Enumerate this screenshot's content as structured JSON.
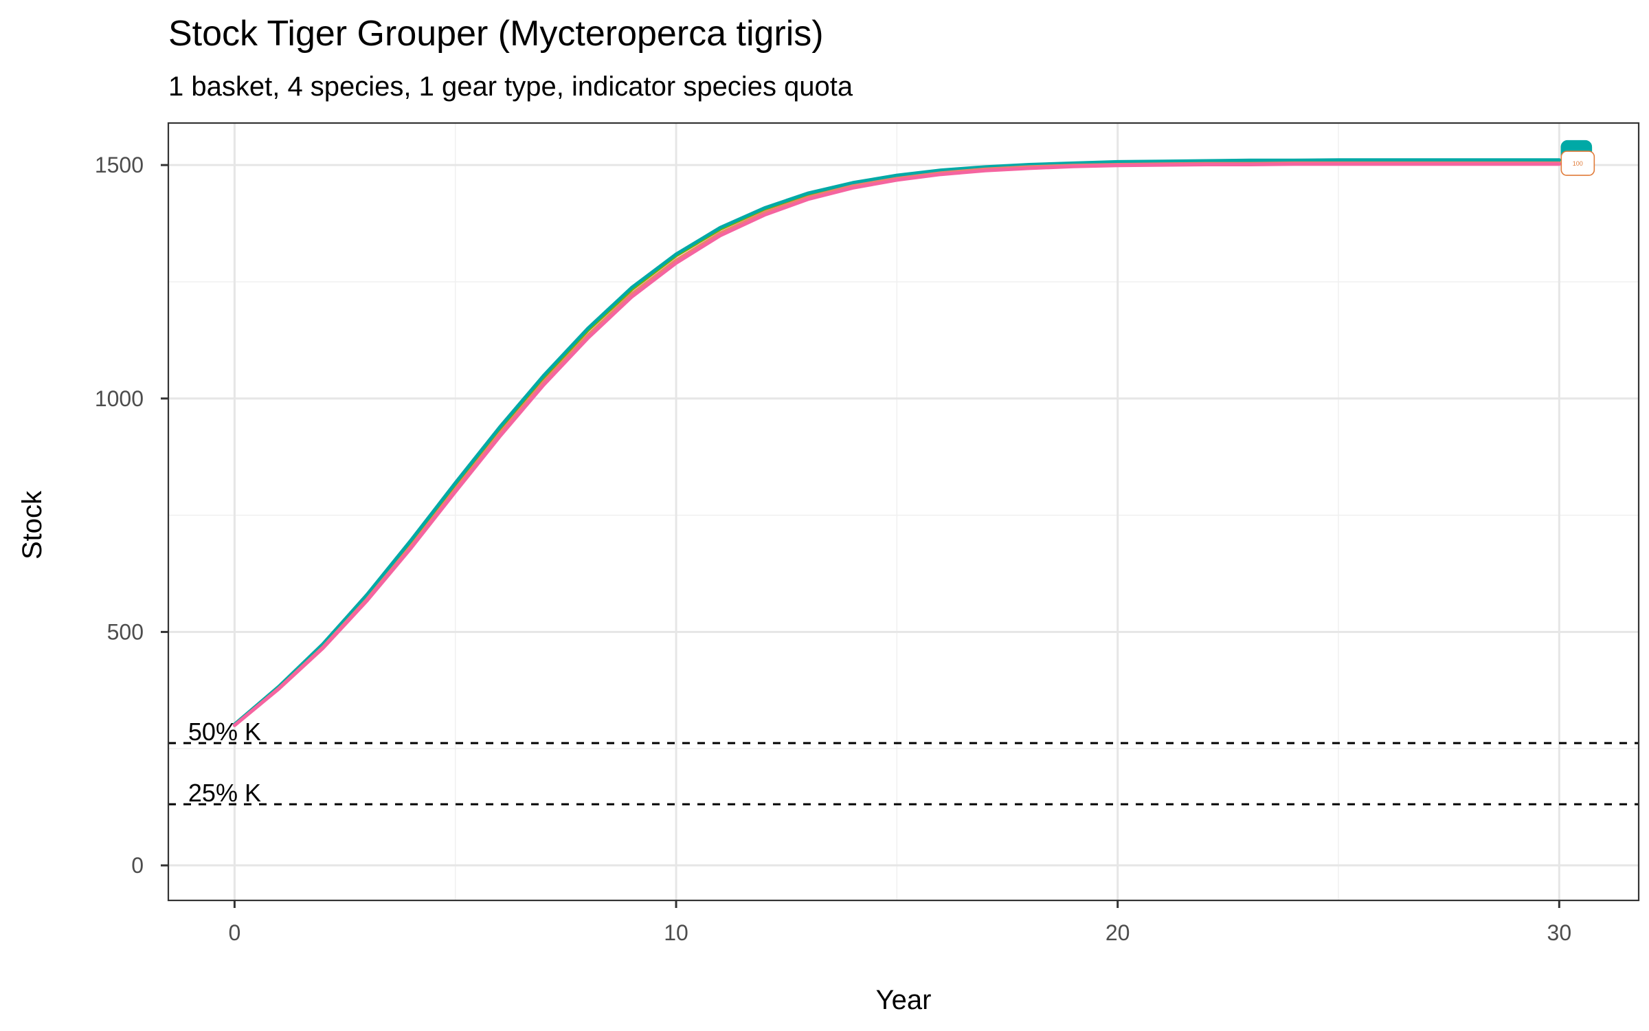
{
  "chart_data": {
    "type": "line",
    "title": "Stock Tiger Grouper (Mycteroperca tigris)",
    "subtitle": "1 basket, 4 species, 1 gear type, indicator species quota",
    "xlabel": "Year",
    "ylabel": "Stock",
    "xlim": [
      -1.5,
      31.8
    ],
    "ylim": [
      -75,
      1590
    ],
    "x_ticks": [
      0,
      10,
      20,
      30
    ],
    "x_minor": [
      5,
      15,
      25
    ],
    "y_ticks": [
      0,
      500,
      1000,
      1500
    ],
    "y_minor": [
      250,
      750,
      1250
    ],
    "grid": true,
    "legend": "none",
    "reference_lines": [
      {
        "label": "50% K",
        "y": 262
      },
      {
        "label": "25% K",
        "y": 131
      }
    ],
    "x": [
      0,
      1,
      2,
      3,
      4,
      5,
      6,
      7,
      8,
      9,
      10,
      11,
      12,
      13,
      14,
      15,
      16,
      17,
      18,
      19,
      20,
      21,
      22,
      23,
      24,
      25,
      26,
      27,
      28,
      29,
      30
    ],
    "series": [
      {
        "color": "#7CAE00",
        "values": [
          302,
          382,
          472,
          577,
          693,
          815,
          934,
          1045,
          1146,
          1234,
          1306,
          1363,
          1406,
          1438,
          1461,
          1477,
          1488,
          1495,
          1500,
          1503,
          1506,
          1507,
          1508,
          1509,
          1509,
          1510,
          1510,
          1510,
          1510,
          1510,
          1510
        ]
      },
      {
        "color": "#00A9A6",
        "values": [
          302,
          383,
          474,
          580,
          697,
          819,
          938,
          1049,
          1150,
          1238,
          1309,
          1366,
          1408,
          1440,
          1462,
          1478,
          1489,
          1496,
          1501,
          1504,
          1507,
          1508,
          1509,
          1510,
          1510,
          1511,
          1511,
          1511,
          1511,
          1511,
          1511
        ]
      },
      {
        "color": "#EF7F6F",
        "values": [
          300,
          379,
          467,
          570,
          684,
          805,
          924,
          1035,
          1135,
          1224,
          1296,
          1354,
          1398,
          1431,
          1455,
          1471,
          1483,
          1491,
          1496,
          1499,
          1501,
          1502,
          1503,
          1503,
          1504,
          1504,
          1504,
          1504,
          1504,
          1504,
          1504
        ]
      },
      {
        "color": "#F564A0",
        "values": [
          300,
          378,
          465,
          567,
          680,
          800,
          918,
          1029,
          1129,
          1218,
          1290,
          1349,
          1393,
          1427,
          1451,
          1468,
          1480,
          1488,
          1493,
          1497,
          1499,
          1500,
          1501,
          1501,
          1502,
          1502,
          1502,
          1502,
          1502,
          1502,
          1502
        ]
      }
    ],
    "end_label": {
      "text": "100",
      "color": "#E07B39",
      "y": 1503
    }
  }
}
